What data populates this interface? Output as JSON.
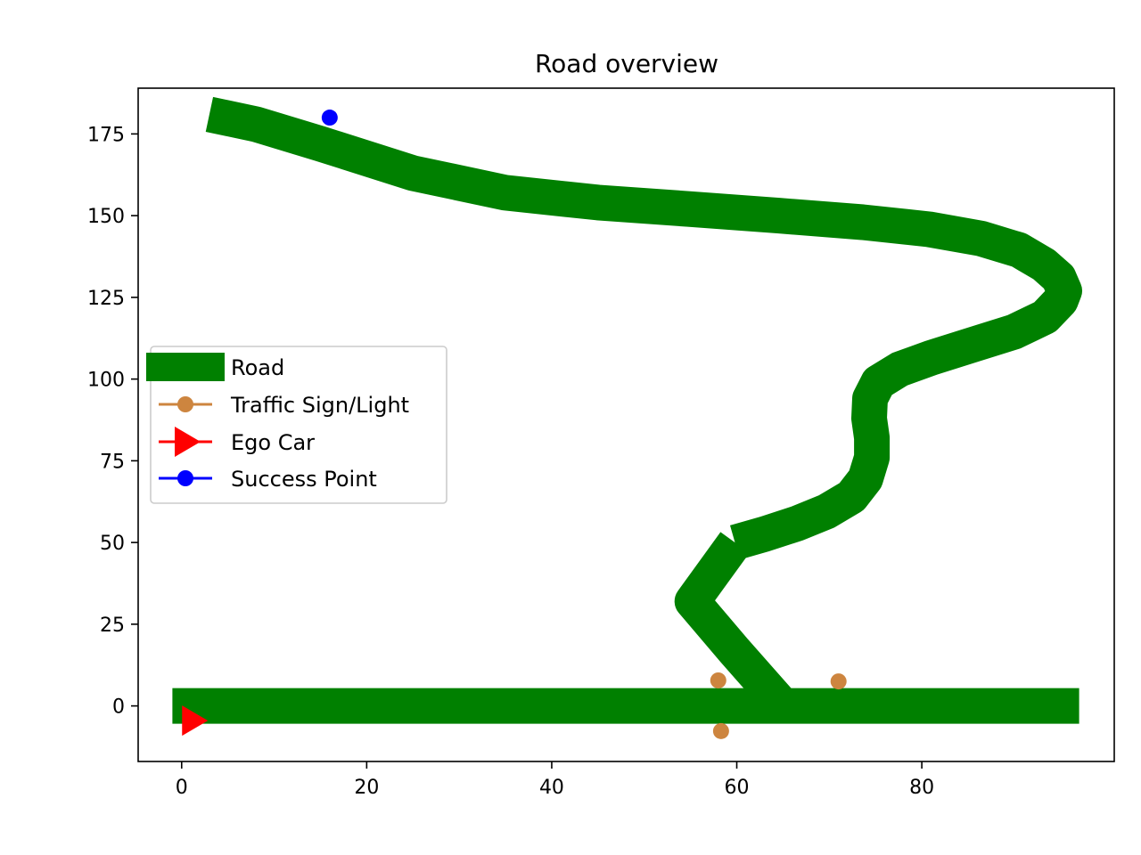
{
  "chart_data": {
    "type": "line",
    "title": "Road overview",
    "xlabel": "",
    "ylabel": "",
    "xlim": [
      -4.7,
      100.8
    ],
    "ylim": [
      -17,
      189
    ],
    "x_ticks": [
      0,
      20,
      40,
      60,
      80
    ],
    "y_ticks": [
      0,
      25,
      50,
      75,
      100,
      125,
      150,
      175
    ],
    "grid": false,
    "legend_position": "center-left",
    "colors": {
      "road": "#008000",
      "traffic": "#cd853f",
      "ego": "#ff0000",
      "success": "#0000ff"
    },
    "series": [
      {
        "name": "Road",
        "kind": "road",
        "segments": [
          [
            [
              -1,
              0
            ],
            [
              97,
              0
            ]
          ],
          [
            [
              65,
              0
            ],
            [
              59.7,
              17
            ],
            [
              55.2,
              32
            ],
            [
              59.8,
              50
            ]
          ],
          [
            [
              59.8,
              50
            ],
            [
              63,
              52.6
            ],
            [
              66.5,
              55.8
            ],
            [
              69.7,
              59.5
            ],
            [
              72.4,
              64
            ],
            [
              73.9,
              69.5
            ],
            [
              74.6,
              76
            ],
            [
              74.6,
              82
            ],
            [
              74.3,
              88
            ],
            [
              74.4,
              94
            ],
            [
              75.3,
              99
            ],
            [
              77.6,
              103
            ],
            [
              81,
              106.5
            ],
            [
              85.5,
              110.5
            ],
            [
              90,
              114.5
            ],
            [
              93.3,
              119
            ],
            [
              95,
              124
            ],
            [
              95.4,
              127
            ],
            [
              94.8,
              131
            ],
            [
              93.2,
              135
            ],
            [
              90.5,
              139.5
            ],
            [
              86.4,
              143
            ],
            [
              80.8,
              145.8
            ],
            [
              73.6,
              148
            ],
            [
              64.5,
              150
            ],
            [
              55,
              152
            ],
            [
              45,
              154
            ],
            [
              35,
              157
            ],
            [
              25,
              163
            ],
            [
              15,
              172
            ],
            [
              8,
              178
            ],
            [
              3,
              181
            ]
          ]
        ]
      },
      {
        "name": "Traffic Sign/Light",
        "kind": "traffic",
        "points": [
          [
            58.0,
            7.8
          ],
          [
            71.0,
            7.5
          ],
          [
            58.3,
            -7.7
          ]
        ]
      },
      {
        "name": "Ego Car",
        "kind": "ego",
        "points": [
          [
            1.2,
            -4.5
          ]
        ]
      },
      {
        "name": "Success Point",
        "kind": "success",
        "points": [
          [
            16,
            180
          ]
        ]
      }
    ]
  }
}
